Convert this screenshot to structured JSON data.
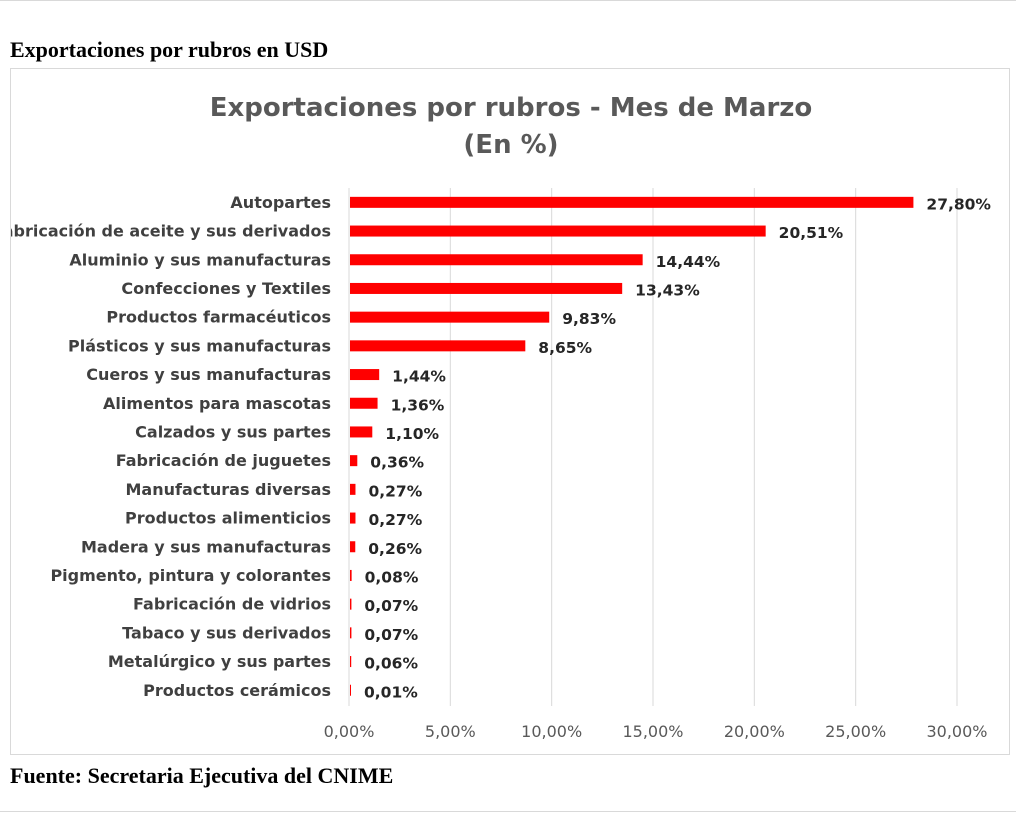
{
  "page": {
    "heading": "Exportaciones por rubros en USD",
    "footer": "Fuente: Secretaria Ejecutiva del CNIME"
  },
  "chart_data": {
    "type": "bar",
    "orientation": "horizontal",
    "title": "Exportaciones por rubros - Mes de Marzo",
    "subtitle": "(En %)",
    "categories": [
      "Autopartes",
      "Fabricación de aceite y sus derivados",
      "Aluminio y sus manufacturas",
      "Confecciones y Textiles",
      "Productos farmacéuticos",
      "Plásticos y sus manufacturas",
      "Cueros y sus manufacturas",
      "Alimentos para mascotas",
      "Calzados y sus partes",
      "Fabricación de juguetes",
      "Manufacturas diversas",
      "Productos alimenticios",
      "Madera y sus manufacturas",
      "Pigmento, pintura y colorantes",
      "Fabricación de vidrios",
      "Tabaco y sus derivados",
      "Metalúrgico y sus partes",
      "Productos cerámicos"
    ],
    "values": [
      27.8,
      20.51,
      14.44,
      13.43,
      9.83,
      8.65,
      1.44,
      1.36,
      1.1,
      0.36,
      0.27,
      0.27,
      0.26,
      0.08,
      0.07,
      0.07,
      0.06,
      0.01
    ],
    "value_labels": [
      "27,80%",
      "20,51%",
      "14,44%",
      "13,43%",
      "9,83%",
      "8,65%",
      "1,44%",
      "1,36%",
      "1,10%",
      "0,36%",
      "0,27%",
      "0,27%",
      "0,26%",
      "0,08%",
      "0,07%",
      "0,07%",
      "0,06%",
      "0,01%"
    ],
    "x_ticks": [
      "0,00%",
      "5,00%",
      "10,00%",
      "15,00%",
      "20,00%",
      "25,00%",
      "30,00%"
    ],
    "xlim": [
      0,
      30
    ],
    "xlabel": "",
    "ylabel": "",
    "grid": true,
    "legend": "none",
    "bar_color": "#ff0000",
    "grid_color": "#d9d9d9"
  }
}
